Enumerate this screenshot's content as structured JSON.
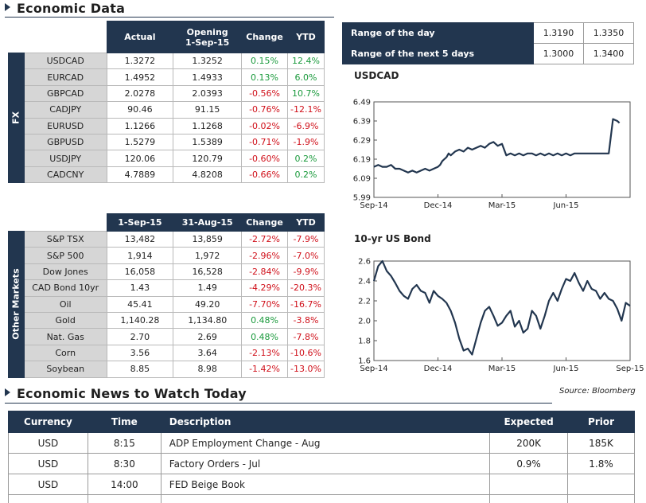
{
  "sections": {
    "economic_data": "Economic Data",
    "news": "Economic News to Watch Today",
    "source": "Source: Bloomberg"
  },
  "fx": {
    "side_label": "FX",
    "headers": {
      "actual": "Actual",
      "opening": "Opening",
      "opening_date": "1-Sep-15",
      "change": "Change",
      "ytd": "YTD"
    },
    "rows": [
      {
        "name": "USDCAD",
        "actual": "1.3272",
        "opening": "1.3252",
        "change": "0.15%",
        "ytd": "12.4%"
      },
      {
        "name": "EURCAD",
        "actual": "1.4952",
        "opening": "1.4933",
        "change": "0.13%",
        "ytd": "6.0%"
      },
      {
        "name": "GBPCAD",
        "actual": "2.0278",
        "opening": "2.0393",
        "change": "-0.56%",
        "ytd": "10.7%"
      },
      {
        "name": "CADJPY",
        "actual": "90.46",
        "opening": "91.15",
        "change": "-0.76%",
        "ytd": "-12.1%"
      },
      {
        "name": "EURUSD",
        "actual": "1.1266",
        "opening": "1.1268",
        "change": "-0.02%",
        "ytd": "-6.9%"
      },
      {
        "name": "GBPUSD",
        "actual": "1.5279",
        "opening": "1.5389",
        "change": "-0.71%",
        "ytd": "-1.9%"
      },
      {
        "name": "USDJPY",
        "actual": "120.06",
        "opening": "120.79",
        "change": "-0.60%",
        "ytd": "0.2%"
      },
      {
        "name": "CADCNY",
        "actual": "4.7889",
        "opening": "4.8208",
        "change": "-0.66%",
        "ytd": "0.2%"
      }
    ]
  },
  "other": {
    "side_label": "Other Markets",
    "headers": {
      "col1": "1-Sep-15",
      "col2": "31-Aug-15",
      "change": "Change",
      "ytd": "YTD"
    },
    "rows": [
      {
        "name": "S&P TSX",
        "v1": "13,482",
        "v2": "13,859",
        "change": "-2.72%",
        "ytd": "-7.9%"
      },
      {
        "name": "S&P 500",
        "v1": "1,914",
        "v2": "1,972",
        "change": "-2.96%",
        "ytd": "-7.0%"
      },
      {
        "name": "Dow Jones",
        "v1": "16,058",
        "v2": "16,528",
        "change": "-2.84%",
        "ytd": "-9.9%"
      },
      {
        "name": "CAD Bond 10yr",
        "v1": "1.43",
        "v2": "1.49",
        "change": "-4.29%",
        "ytd": "-20.3%"
      },
      {
        "name": "Oil",
        "v1": "45.41",
        "v2": "49.20",
        "change": "-7.70%",
        "ytd": "-16.7%"
      },
      {
        "name": "Gold",
        "v1": "1,140.28",
        "v2": "1,134.80",
        "change": "0.48%",
        "ytd": "-3.8%"
      },
      {
        "name": "Nat. Gas",
        "v1": "2.70",
        "v2": "2.69",
        "change": "0.48%",
        "ytd": "-7.8%"
      },
      {
        "name": "Corn",
        "v1": "3.56",
        "v2": "3.64",
        "change": "-2.13%",
        "ytd": "-10.6%"
      },
      {
        "name": "Soybean",
        "v1": "8.85",
        "v2": "8.98",
        "change": "-1.42%",
        "ytd": "-13.0%"
      }
    ]
  },
  "range": [
    {
      "label": "Range of the day",
      "low": "1.3190",
      "high": "1.3350"
    },
    {
      "label": "Range of the next 5 days",
      "low": "1.3000",
      "high": "1.3400"
    }
  ],
  "chart_data": [
    {
      "type": "line",
      "title": "USDCAD",
      "ylim": [
        5.99,
        6.49
      ],
      "yticks": [
        "6.49",
        "6.39",
        "6.29",
        "6.19",
        "6.09",
        "5.99"
      ],
      "xticks": [
        "Sep-14",
        "Dec-14",
        "Mar-15",
        "Jun-15"
      ],
      "xtick_pos": [
        0.0,
        3.0,
        6.0,
        9.0
      ],
      "xlim": [
        0,
        12
      ],
      "grid": false,
      "color": "#22364f",
      "x": [
        0,
        0.2,
        0.4,
        0.6,
        0.8,
        1.0,
        1.2,
        1.4,
        1.6,
        1.8,
        2.0,
        2.2,
        2.4,
        2.6,
        2.8,
        3.0,
        3.1,
        3.2,
        3.3,
        3.4,
        3.5,
        3.6,
        3.7,
        3.8,
        4.0,
        4.2,
        4.4,
        4.6,
        4.8,
        5.0,
        5.2,
        5.4,
        5.6,
        5.8,
        6.0,
        6.2,
        6.4,
        6.6,
        6.8,
        7.0,
        7.2,
        7.4,
        7.6,
        7.8,
        8.0,
        8.2,
        8.4,
        8.6,
        8.8,
        9.0,
        9.2,
        9.4,
        9.6,
        9.8,
        10.0,
        10.1,
        10.2,
        10.3,
        10.4,
        10.5,
        10.6,
        10.7,
        10.8,
        10.9,
        11.0,
        11.2,
        11.4,
        11.5
      ],
      "values": [
        6.15,
        6.16,
        6.15,
        6.15,
        6.16,
        6.14,
        6.14,
        6.13,
        6.12,
        6.13,
        6.12,
        6.13,
        6.14,
        6.13,
        6.14,
        6.15,
        6.16,
        6.18,
        6.19,
        6.2,
        6.22,
        6.21,
        6.22,
        6.23,
        6.24,
        6.23,
        6.25,
        6.24,
        6.25,
        6.26,
        6.25,
        6.27,
        6.28,
        6.26,
        6.27,
        6.21,
        6.22,
        6.21,
        6.22,
        6.21,
        6.22,
        6.22,
        6.21,
        6.22,
        6.21,
        6.22,
        6.21,
        6.22,
        6.21,
        6.22,
        6.21,
        6.22,
        6.22,
        6.22,
        6.22,
        6.22,
        6.22,
        6.22,
        6.22,
        6.22,
        6.22,
        6.22,
        6.22,
        6.22,
        6.22,
        6.4,
        6.39,
        6.38
      ]
    },
    {
      "type": "line",
      "title": "10-yr US Bond",
      "ylim": [
        1.6,
        2.6
      ],
      "yticks": [
        "2.6",
        "2.4",
        "2.2",
        "2.0",
        "1.8",
        "1.6"
      ],
      "xticks": [
        "Sep-14",
        "Dec-14",
        "Mar-15",
        "Jun-15",
        "Sep-15"
      ],
      "xtick_pos": [
        0,
        3,
        6,
        9,
        12
      ],
      "xlim": [
        0,
        12
      ],
      "grid": false,
      "color": "#22364f",
      "x": [
        0,
        0.2,
        0.4,
        0.6,
        0.8,
        1.0,
        1.2,
        1.4,
        1.6,
        1.8,
        2.0,
        2.2,
        2.4,
        2.6,
        2.8,
        3.0,
        3.2,
        3.4,
        3.6,
        3.8,
        4.0,
        4.2,
        4.4,
        4.6,
        4.8,
        5.0,
        5.2,
        5.4,
        5.6,
        5.8,
        6.0,
        6.2,
        6.4,
        6.6,
        6.8,
        7.0,
        7.2,
        7.4,
        7.6,
        7.8,
        8.0,
        8.2,
        8.4,
        8.6,
        8.8,
        9.0,
        9.2,
        9.4,
        9.6,
        9.8,
        10.0,
        10.2,
        10.4,
        10.6,
        10.8,
        11.0,
        11.2,
        11.4,
        11.6,
        11.8,
        12.0
      ],
      "values": [
        2.4,
        2.55,
        2.6,
        2.5,
        2.45,
        2.38,
        2.3,
        2.25,
        2.22,
        2.32,
        2.36,
        2.3,
        2.28,
        2.18,
        2.3,
        2.25,
        2.22,
        2.18,
        2.1,
        1.98,
        1.82,
        1.7,
        1.72,
        1.66,
        1.82,
        1.98,
        2.1,
        2.14,
        2.05,
        1.95,
        1.98,
        2.05,
        2.1,
        1.94,
        2.0,
        1.88,
        1.92,
        2.1,
        2.05,
        1.92,
        2.05,
        2.2,
        2.28,
        2.2,
        2.32,
        2.42,
        2.4,
        2.48,
        2.38,
        2.3,
        2.4,
        2.32,
        2.3,
        2.22,
        2.28,
        2.22,
        2.2,
        2.12,
        2.0,
        2.18,
        2.15
      ]
    }
  ],
  "news": {
    "headers": {
      "currency": "Currency",
      "time": "Time",
      "description": "Description",
      "expected": "Expected",
      "prior": "Prior"
    },
    "rows": [
      {
        "currency": "USD",
        "time": "8:15",
        "description": "ADP Employment Change - Aug",
        "expected": "200K",
        "prior": "185K"
      },
      {
        "currency": "USD",
        "time": "8:30",
        "description": "Factory Orders - Jul",
        "expected": "0.9%",
        "prior": "1.8%"
      },
      {
        "currency": "USD",
        "time": "14:00",
        "description": "FED Beige Book",
        "expected": "",
        "prior": ""
      }
    ]
  }
}
